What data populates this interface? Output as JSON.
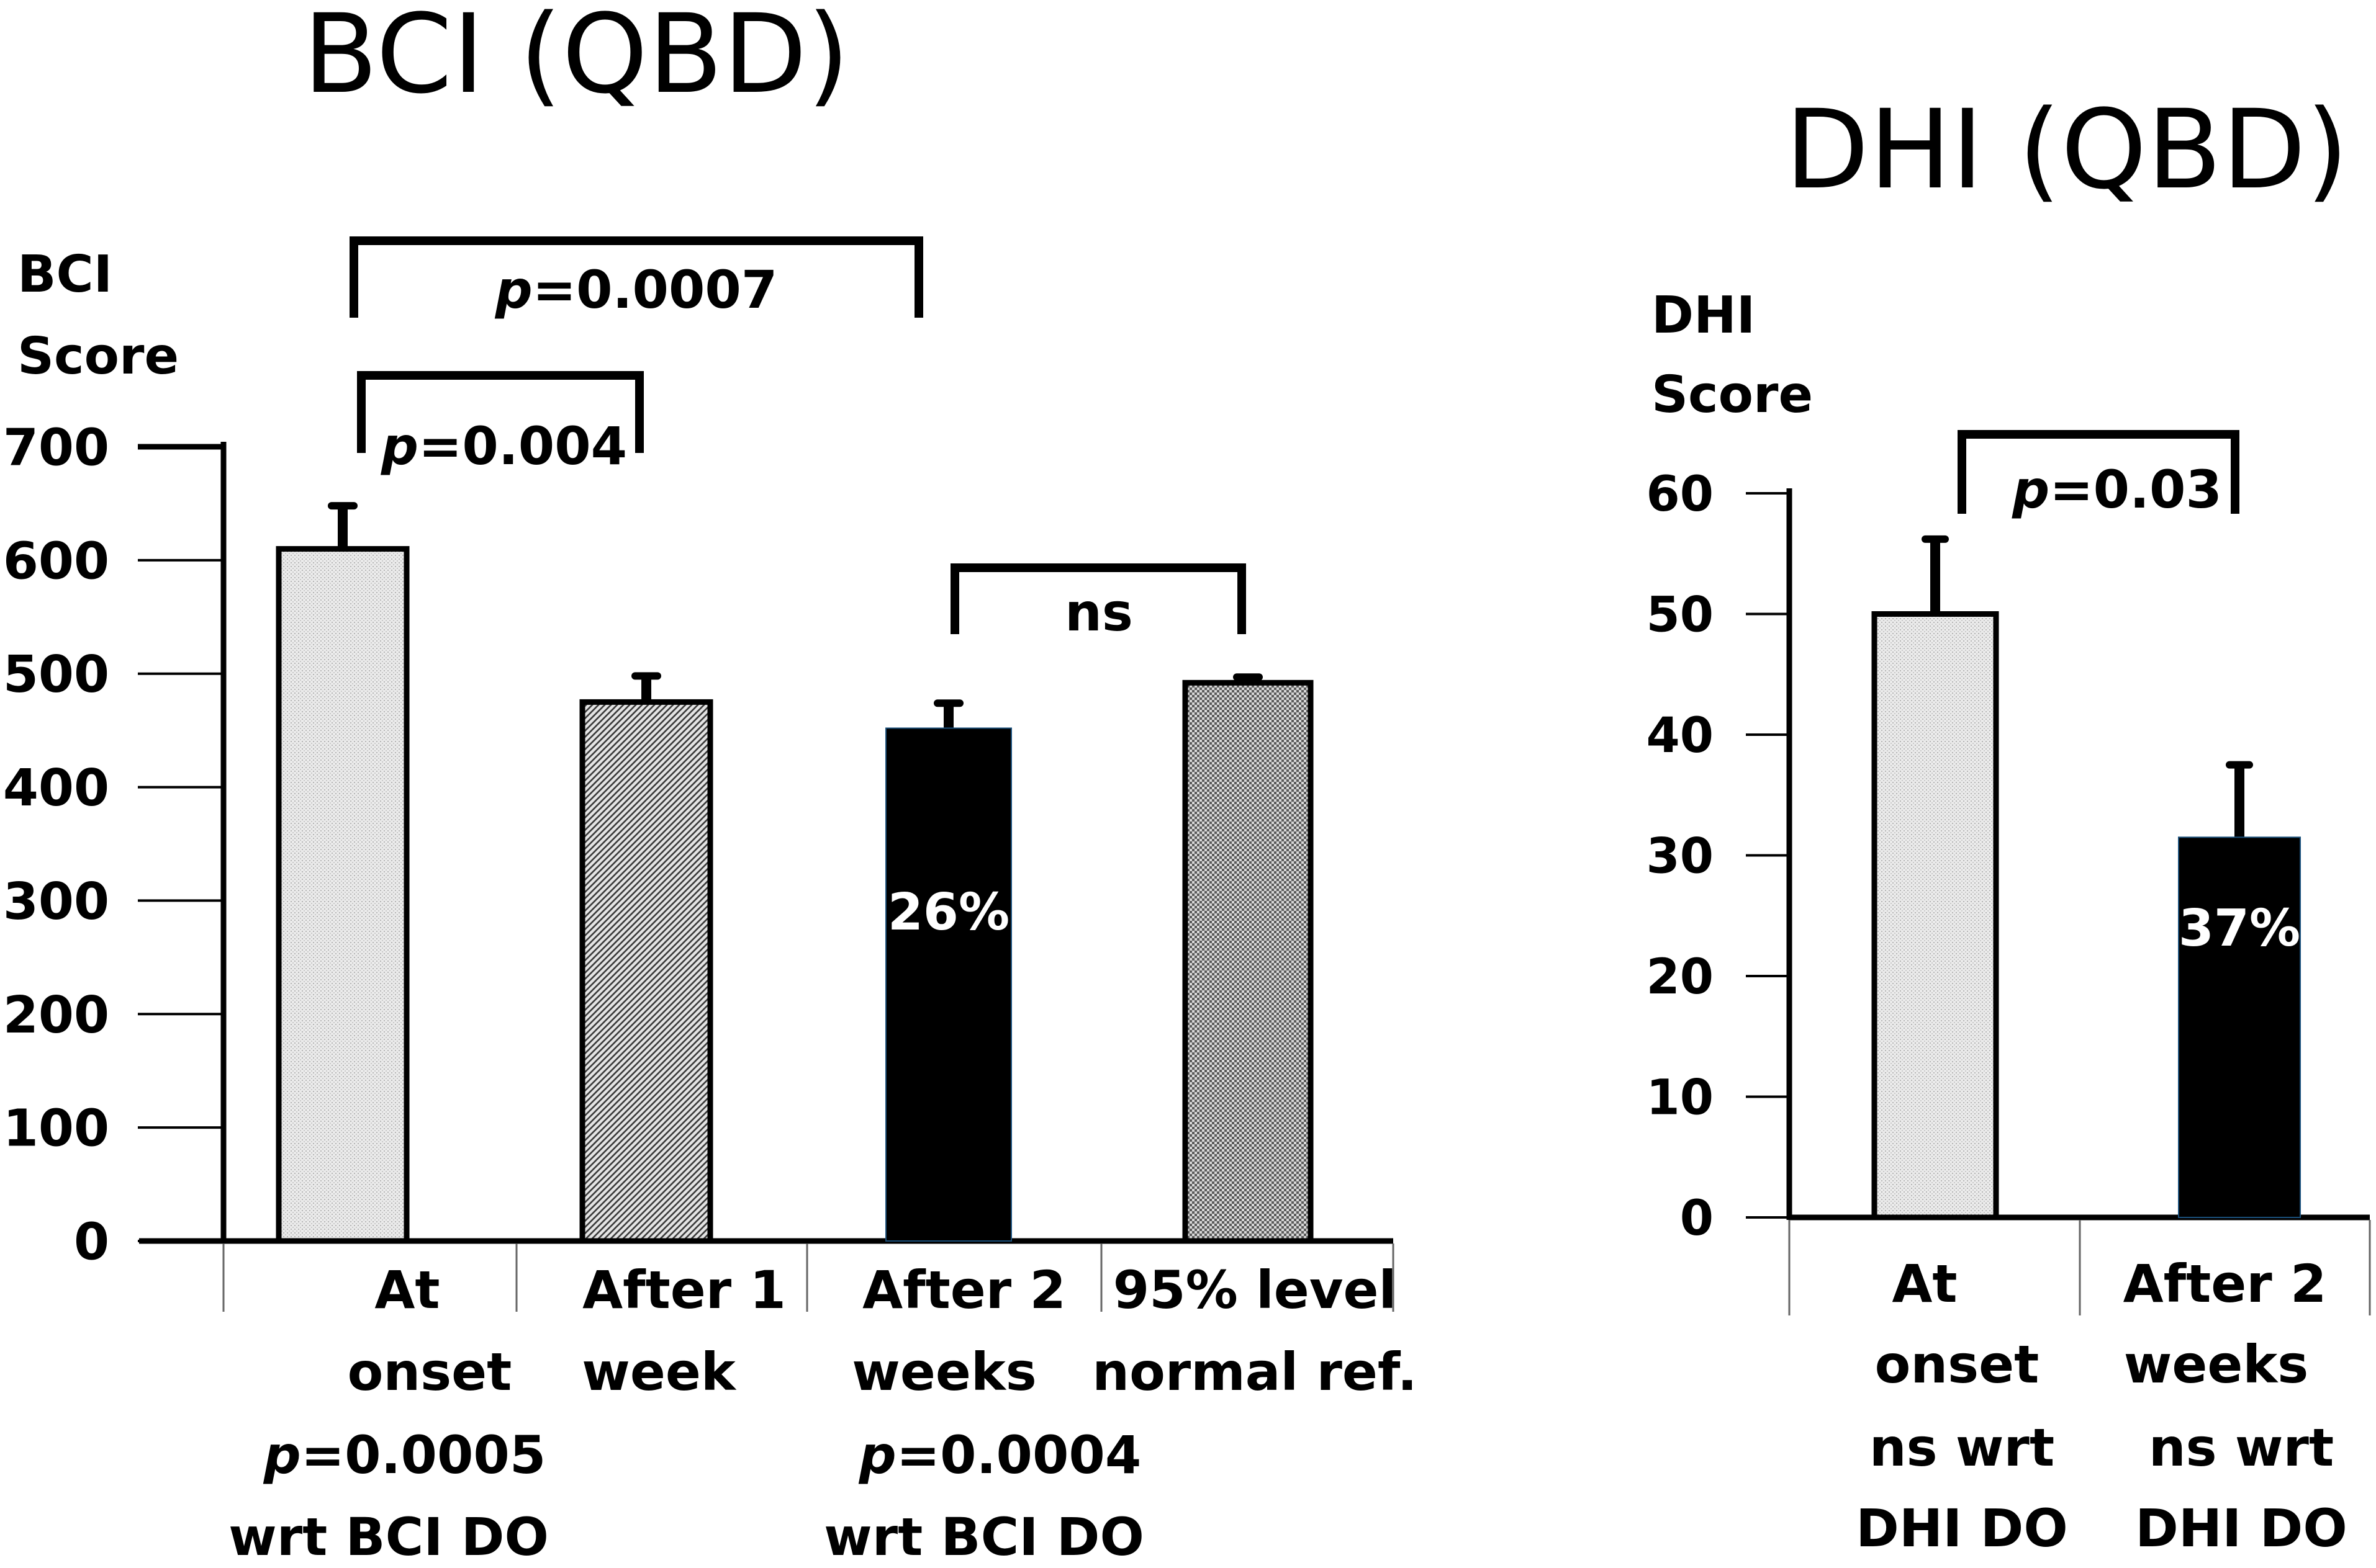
{
  "chart_data": [
    {
      "type": "bar",
      "title": "BCI (QBD)",
      "ylabel": [
        "BCI",
        "Score"
      ],
      "ylim": [
        0,
        700
      ],
      "yticks": [
        0,
        100,
        200,
        300,
        400,
        500,
        600,
        700
      ],
      "categories": [
        [
          "At",
          "onset"
        ],
        [
          "After 1",
          "week"
        ],
        [
          "After 2",
          "weeks"
        ],
        [
          "95% level",
          "normal ref."
        ]
      ],
      "category_notes": [
        [
          "p=0.0005",
          "wrt BCI DO"
        ],
        null,
        [
          "p=0.0004",
          "wrt BCI DO"
        ],
        null
      ],
      "values": [
        610,
        475,
        452,
        492
      ],
      "errors": [
        38,
        23,
        22,
        5
      ],
      "fills": [
        "light-stipple",
        "diagonal-hatch",
        "solid-black",
        "crosshatch"
      ],
      "bar_labels": [
        null,
        null,
        "26%",
        null
      ],
      "comparisons": [
        {
          "from": 0,
          "to": 2,
          "label_p": "p",
          "label_rest": "=0.0007"
        },
        {
          "from": 0,
          "to": 1,
          "label_p": "p",
          "label_rest": "=0.004"
        },
        {
          "from": 2,
          "to": 3,
          "label_p": "",
          "label_rest": "ns"
        }
      ]
    },
    {
      "type": "bar",
      "title": "DHI (QBD)",
      "ylabel": [
        "DHI",
        "Score"
      ],
      "ylim": [
        0,
        60
      ],
      "yticks": [
        0,
        10,
        20,
        30,
        40,
        50,
        60
      ],
      "categories": [
        [
          "At",
          "onset"
        ],
        [
          "After 2",
          "weeks"
        ]
      ],
      "category_notes": [
        [
          "ns wrt",
          "DHI DO"
        ],
        [
          "ns wrt",
          "DHI DO"
        ]
      ],
      "values": [
        50,
        31.5
      ],
      "errors": [
        6.2,
        6
      ],
      "fills": [
        "light-stipple",
        "solid-black"
      ],
      "bar_labels": [
        null,
        "37%"
      ],
      "comparisons": [
        {
          "from": 0,
          "to": 1,
          "label_p": "p",
          "label_rest": "=0.03"
        }
      ]
    }
  ]
}
